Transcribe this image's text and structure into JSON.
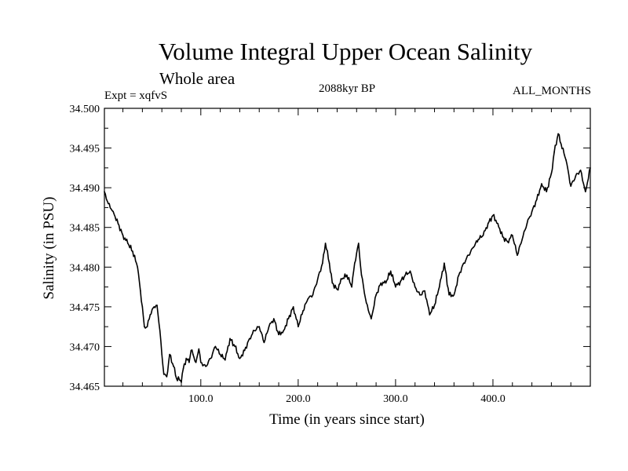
{
  "chart_data": {
    "type": "line",
    "title": "Volume Integral Upper Ocean Salinity",
    "subtitle": "Whole area",
    "experiment": "Expt = xqfvS",
    "period": "2088kyr BP",
    "months": "ALL_MONTHS",
    "xlabel": "Time (in years since start)",
    "ylabel": "Salinity (in PSU)",
    "xlim": [
      1,
      500
    ],
    "ylim": [
      34.465,
      34.5
    ],
    "x_ticks": [
      100,
      200,
      300,
      400
    ],
    "x_tick_labels": [
      "100.0",
      "200.0",
      "300.0",
      "400.0"
    ],
    "y_ticks": [
      34.465,
      34.47,
      34.475,
      34.48,
      34.485,
      34.49,
      34.495,
      34.5
    ],
    "y_tick_labels": [
      "34.465",
      "34.470",
      "34.475",
      "34.480",
      "34.485",
      "34.490",
      "34.495",
      "34.500"
    ],
    "grid": false,
    "series": [
      {
        "name": "Salinity",
        "x": [
          1,
          5,
          10,
          15,
          20,
          25,
          30,
          35,
          38,
          40,
          42,
          45,
          48,
          52,
          55,
          58,
          60,
          62,
          65,
          68,
          72,
          75,
          78,
          80,
          82,
          85,
          88,
          90,
          92,
          95,
          98,
          100,
          105,
          110,
          115,
          120,
          125,
          130,
          135,
          140,
          145,
          150,
          155,
          160,
          165,
          170,
          175,
          180,
          185,
          190,
          195,
          200,
          205,
          210,
          215,
          220,
          225,
          228,
          232,
          235,
          240,
          245,
          250,
          255,
          258,
          262,
          265,
          270,
          275,
          280,
          285,
          290,
          295,
          300,
          305,
          310,
          315,
          320,
          325,
          330,
          335,
          340,
          345,
          350,
          355,
          360,
          365,
          370,
          375,
          380,
          385,
          390,
          395,
          400,
          405,
          410,
          415,
          420,
          425,
          430,
          435,
          440,
          445,
          450,
          455,
          460,
          463,
          467,
          470,
          475,
          480,
          485,
          490,
          495,
          500
        ],
        "values": [
          34.4895,
          34.488,
          34.487,
          34.4855,
          34.484,
          34.483,
          34.482,
          34.48,
          34.477,
          34.475,
          34.4725,
          34.4725,
          34.474,
          34.475,
          34.4752,
          34.472,
          34.469,
          34.4665,
          34.4662,
          34.469,
          34.4675,
          34.466,
          34.4658,
          34.4655,
          34.4672,
          34.4685,
          34.468,
          34.4695,
          34.469,
          34.468,
          34.4697,
          34.468,
          34.4675,
          34.4685,
          34.47,
          34.469,
          34.4683,
          34.471,
          34.47,
          34.4685,
          34.4695,
          34.471,
          34.472,
          34.4725,
          34.4705,
          34.4725,
          34.4735,
          34.4715,
          34.472,
          34.4735,
          34.475,
          34.4725,
          34.4745,
          34.476,
          34.4765,
          34.4785,
          34.4805,
          34.483,
          34.4805,
          34.478,
          34.4772,
          34.4785,
          34.479,
          34.4775,
          34.4805,
          34.483,
          34.479,
          34.4755,
          34.4735,
          34.4765,
          34.478,
          34.478,
          34.4795,
          34.4775,
          34.4782,
          34.479,
          34.4795,
          34.4775,
          34.4765,
          34.477,
          34.474,
          34.4752,
          34.4775,
          34.4805,
          34.4765,
          34.4765,
          34.479,
          34.4805,
          34.4815,
          34.4825,
          34.4835,
          34.484,
          34.4855,
          34.4865,
          34.4855,
          34.4838,
          34.4832,
          34.484,
          34.4815,
          34.4835,
          34.4855,
          34.487,
          34.4885,
          34.4905,
          34.4895,
          34.4918,
          34.4945,
          34.4968,
          34.4955,
          34.4935,
          34.4902,
          34.4915,
          34.4922,
          34.4895,
          34.4925
        ]
      }
    ]
  }
}
